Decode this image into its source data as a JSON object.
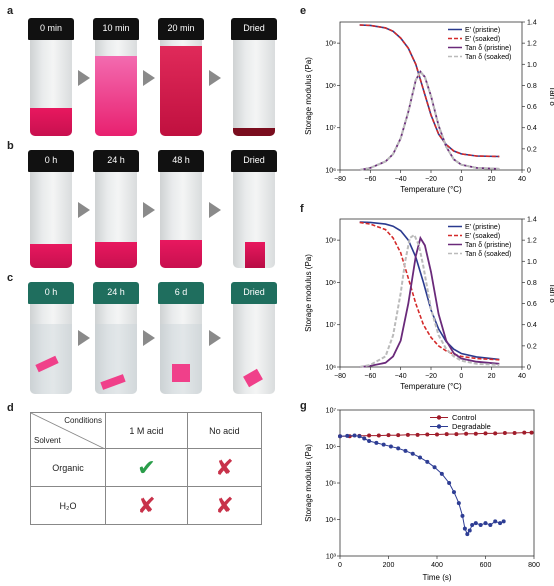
{
  "panels": {
    "a": {
      "label": "a",
      "vials": [
        "0 min",
        "10 min",
        "20 min",
        "Dried"
      ]
    },
    "b": {
      "label": "b",
      "vials": [
        "0 h",
        "24 h",
        "48 h",
        "Dried"
      ]
    },
    "c": {
      "label": "c",
      "vials": [
        "0 h",
        "24 h",
        "6 d",
        "Dried"
      ]
    },
    "d": {
      "label": "d",
      "header_conditions": "Conditions",
      "header_solvent": "Solvent",
      "col1": "1 M acid",
      "col2": "No acid",
      "row1": "Organic",
      "row2": "H₂O"
    },
    "e": {
      "label": "e"
    },
    "f": {
      "label": "f"
    },
    "g": {
      "label": "g"
    }
  },
  "colors": {
    "pink": "#e8185f",
    "purple": "#6a2a7a",
    "navy": "#2a3a8f",
    "red": "#d42a2a",
    "grey": "#bbbbbb",
    "control": "#a01c2a",
    "degradable": "#2e3d94"
  },
  "chart_data": [
    {
      "type": "line",
      "panel": "e",
      "xlabel": "Temperature (°C)",
      "ylabel": "Storage modulus (Pa)",
      "y2label": "Tan δ",
      "xlim": [
        -80,
        40
      ],
      "xticks": [
        "-80",
        "-60",
        "-40",
        "-20",
        "0",
        "20",
        "40"
      ],
      "ylim_log": [
        6,
        9.5
      ],
      "yticks": [
        "10⁶",
        "10⁷",
        "10⁸",
        "10⁹"
      ],
      "y2lim": [
        0,
        1.4
      ],
      "y2ticks": [
        "0",
        "0.2",
        "0.4",
        "0.6",
        "0.8",
        "1.0",
        "1.2",
        "1.4"
      ],
      "legend": [
        "E′ (pristine)",
        "E′ (soaked)",
        "Tan δ (pristine)",
        "Tan δ (soaked)"
      ],
      "series": [
        {
          "name": "E′ (pristine)",
          "x": [
            -67,
            -60,
            -50,
            -45,
            -40,
            -35,
            -30,
            -25,
            -20,
            -15,
            -10,
            -5,
            0,
            10,
            25
          ],
          "log10y": [
            9.43,
            9.42,
            9.36,
            9.28,
            9.12,
            8.88,
            8.5,
            7.9,
            7.3,
            6.85,
            6.6,
            6.45,
            6.38,
            6.33,
            6.32
          ]
        },
        {
          "name": "E′ (soaked)",
          "x": [
            -67,
            -60,
            -50,
            -45,
            -40,
            -35,
            -30,
            -25,
            -20,
            -15,
            -10,
            -5,
            0,
            10,
            25
          ],
          "log10y": [
            9.43,
            9.42,
            9.36,
            9.28,
            9.12,
            8.88,
            8.5,
            7.9,
            7.3,
            6.85,
            6.6,
            6.45,
            6.38,
            6.33,
            6.32
          ]
        },
        {
          "name": "Tan δ (pristine)",
          "x": [
            -67,
            -60,
            -50,
            -45,
            -40,
            -35,
            -30,
            -27,
            -24,
            -20,
            -15,
            -10,
            -5,
            0,
            10,
            25
          ],
          "y": [
            0.0,
            0.02,
            0.08,
            0.15,
            0.3,
            0.55,
            0.85,
            0.93,
            0.88,
            0.7,
            0.42,
            0.22,
            0.1,
            0.05,
            0.02,
            0.01
          ]
        },
        {
          "name": "Tan δ (soaked)",
          "x": [
            -67,
            -60,
            -50,
            -45,
            -40,
            -35,
            -30,
            -27,
            -24,
            -20,
            -15,
            -10,
            -5,
            0,
            10,
            25
          ],
          "y": [
            0.0,
            0.02,
            0.08,
            0.15,
            0.3,
            0.55,
            0.85,
            0.93,
            0.88,
            0.7,
            0.42,
            0.22,
            0.1,
            0.05,
            0.02,
            0.01
          ]
        }
      ]
    },
    {
      "type": "line",
      "panel": "f",
      "xlabel": "Temperature (°C)",
      "ylabel": "Storage modulus (Pa)",
      "y2label": "Tan δ",
      "xlim": [
        -80,
        40
      ],
      "xticks": [
        "-80",
        "-60",
        "-40",
        "-20",
        "0",
        "20",
        "40"
      ],
      "ylim_log": [
        6,
        9.5
      ],
      "yticks": [
        "10⁶",
        "10⁷",
        "10⁸",
        "10⁹"
      ],
      "y2lim": [
        0,
        1.4
      ],
      "y2ticks": [
        "0",
        "0.2",
        "0.4",
        "0.6",
        "0.8",
        "1.0",
        "1.2",
        "1.4"
      ],
      "legend": [
        "E′ (pristine)",
        "E′ (soaked)",
        "Tan δ (pristine)",
        "Tan δ (soaked)"
      ],
      "series": [
        {
          "name": "E′ (pristine)",
          "x": [
            -67,
            -60,
            -50,
            -45,
            -40,
            -35,
            -30,
            -25,
            -20,
            -15,
            -10,
            -5,
            0,
            10,
            25
          ],
          "log10y": [
            9.43,
            9.42,
            9.38,
            9.33,
            9.22,
            9.0,
            8.6,
            8.0,
            7.35,
            6.9,
            6.6,
            6.42,
            6.32,
            6.24,
            6.18
          ]
        },
        {
          "name": "E′ (soaked)",
          "x": [
            -67,
            -60,
            -50,
            -45,
            -40,
            -35,
            -30,
            -25,
            -20,
            -15,
            -10,
            -5,
            0,
            10,
            25
          ],
          "log10y": [
            9.42,
            9.38,
            9.25,
            9.05,
            8.7,
            8.1,
            7.5,
            7.0,
            6.7,
            6.5,
            6.38,
            6.3,
            6.25,
            6.2,
            6.17
          ]
        },
        {
          "name": "Tan δ (pristine)",
          "x": [
            -67,
            -60,
            -50,
            -45,
            -40,
            -35,
            -30,
            -27,
            -24,
            -20,
            -15,
            -10,
            -5,
            0,
            10,
            25
          ],
          "y": [
            0.0,
            0.01,
            0.04,
            0.1,
            0.25,
            0.6,
            1.05,
            1.22,
            1.15,
            0.9,
            0.5,
            0.25,
            0.13,
            0.08,
            0.05,
            0.03
          ]
        },
        {
          "name": "Tan δ (soaked)",
          "x": [
            -67,
            -60,
            -50,
            -45,
            -40,
            -37,
            -34,
            -31,
            -28,
            -25,
            -20,
            -15,
            -10,
            -5,
            0,
            10,
            25
          ],
          "y": [
            0.0,
            0.02,
            0.1,
            0.3,
            0.7,
            1.0,
            1.22,
            1.25,
            1.15,
            0.95,
            0.55,
            0.3,
            0.17,
            0.1,
            0.06,
            0.03,
            0.02
          ]
        }
      ]
    },
    {
      "type": "scatter",
      "panel": "g",
      "xlabel": "Time (s)",
      "ylabel": "Storage modulus (Pa)",
      "xlim": [
        0,
        800
      ],
      "xticks": [
        "0",
        "200",
        "400",
        "600",
        "800"
      ],
      "ylim_log": [
        3,
        7
      ],
      "yticks": [
        "10³",
        "10⁴",
        "10⁵",
        "10⁶",
        "10⁷"
      ],
      "legend": [
        "Control",
        "Degradable"
      ],
      "series": [
        {
          "name": "Control",
          "x": [
            0,
            40,
            80,
            120,
            160,
            200,
            240,
            280,
            320,
            360,
            400,
            440,
            480,
            520,
            560,
            600,
            640,
            680,
            720,
            760,
            790
          ],
          "log10y": [
            6.28,
            6.28,
            6.29,
            6.3,
            6.3,
            6.31,
            6.31,
            6.32,
            6.32,
            6.33,
            6.33,
            6.34,
            6.34,
            6.35,
            6.35,
            6.36,
            6.36,
            6.37,
            6.37,
            6.38,
            6.38
          ]
        },
        {
          "name": "Degradable",
          "x": [
            0,
            30,
            60,
            80,
            100,
            120,
            150,
            180,
            210,
            240,
            270,
            300,
            330,
            360,
            390,
            420,
            450,
            470,
            490,
            505,
            515,
            525,
            535,
            545,
            560,
            580,
            600,
            620,
            640,
            660,
            675
          ],
          "log10y": [
            6.28,
            6.29,
            6.3,
            6.28,
            6.22,
            6.15,
            6.1,
            6.05,
            6.0,
            5.95,
            5.88,
            5.8,
            5.7,
            5.58,
            5.43,
            5.25,
            5.0,
            4.75,
            4.45,
            4.1,
            3.75,
            3.6,
            3.7,
            3.85,
            3.9,
            3.85,
            3.9,
            3.85,
            3.95,
            3.9,
            3.95
          ]
        }
      ]
    }
  ]
}
